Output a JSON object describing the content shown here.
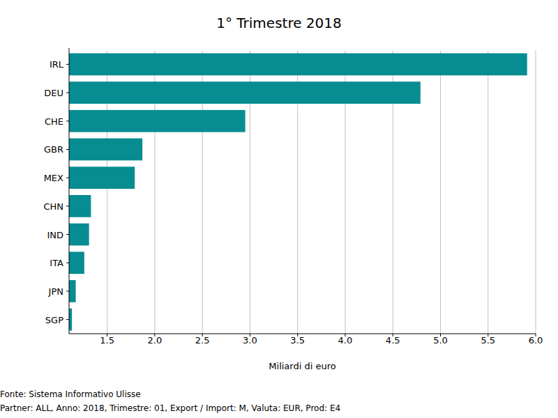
{
  "chart_data": {
    "type": "bar",
    "orientation": "horizontal",
    "title": "1° Trimestre 2018",
    "x_label": "Miliardi di euro",
    "annotations": [
      "Fonte: Sistema Informativo Ulisse",
      "Partner: ALL, Anno: 2018, Trimestre: 01, Export / Import: M, Valuta: EUR, Prod: E4"
    ],
    "categories": [
      "IRL",
      "DEU",
      "CHE",
      "GBR",
      "MEX",
      "CHN",
      "IND",
      "ITA",
      "JPN",
      "SGP"
    ],
    "values": [
      5.91,
      4.79,
      2.95,
      1.87,
      1.79,
      1.33,
      1.31,
      1.26,
      1.17,
      1.13
    ],
    "color": "#078d91",
    "xlim": [
      1.1,
      6.0
    ],
    "xticks": [
      1.5,
      {
        "value": 2,
        "label": "2.0"
      },
      2.5,
      {
        "value": 3,
        "label": "3.0"
      },
      3.5,
      {
        "value": 4,
        "label": "4.0"
      },
      4.5,
      {
        "value": 5,
        "label": "5.0"
      },
      5.5,
      {
        "value": 6,
        "label": "6.0"
      }
    ],
    "grid": true
  }
}
